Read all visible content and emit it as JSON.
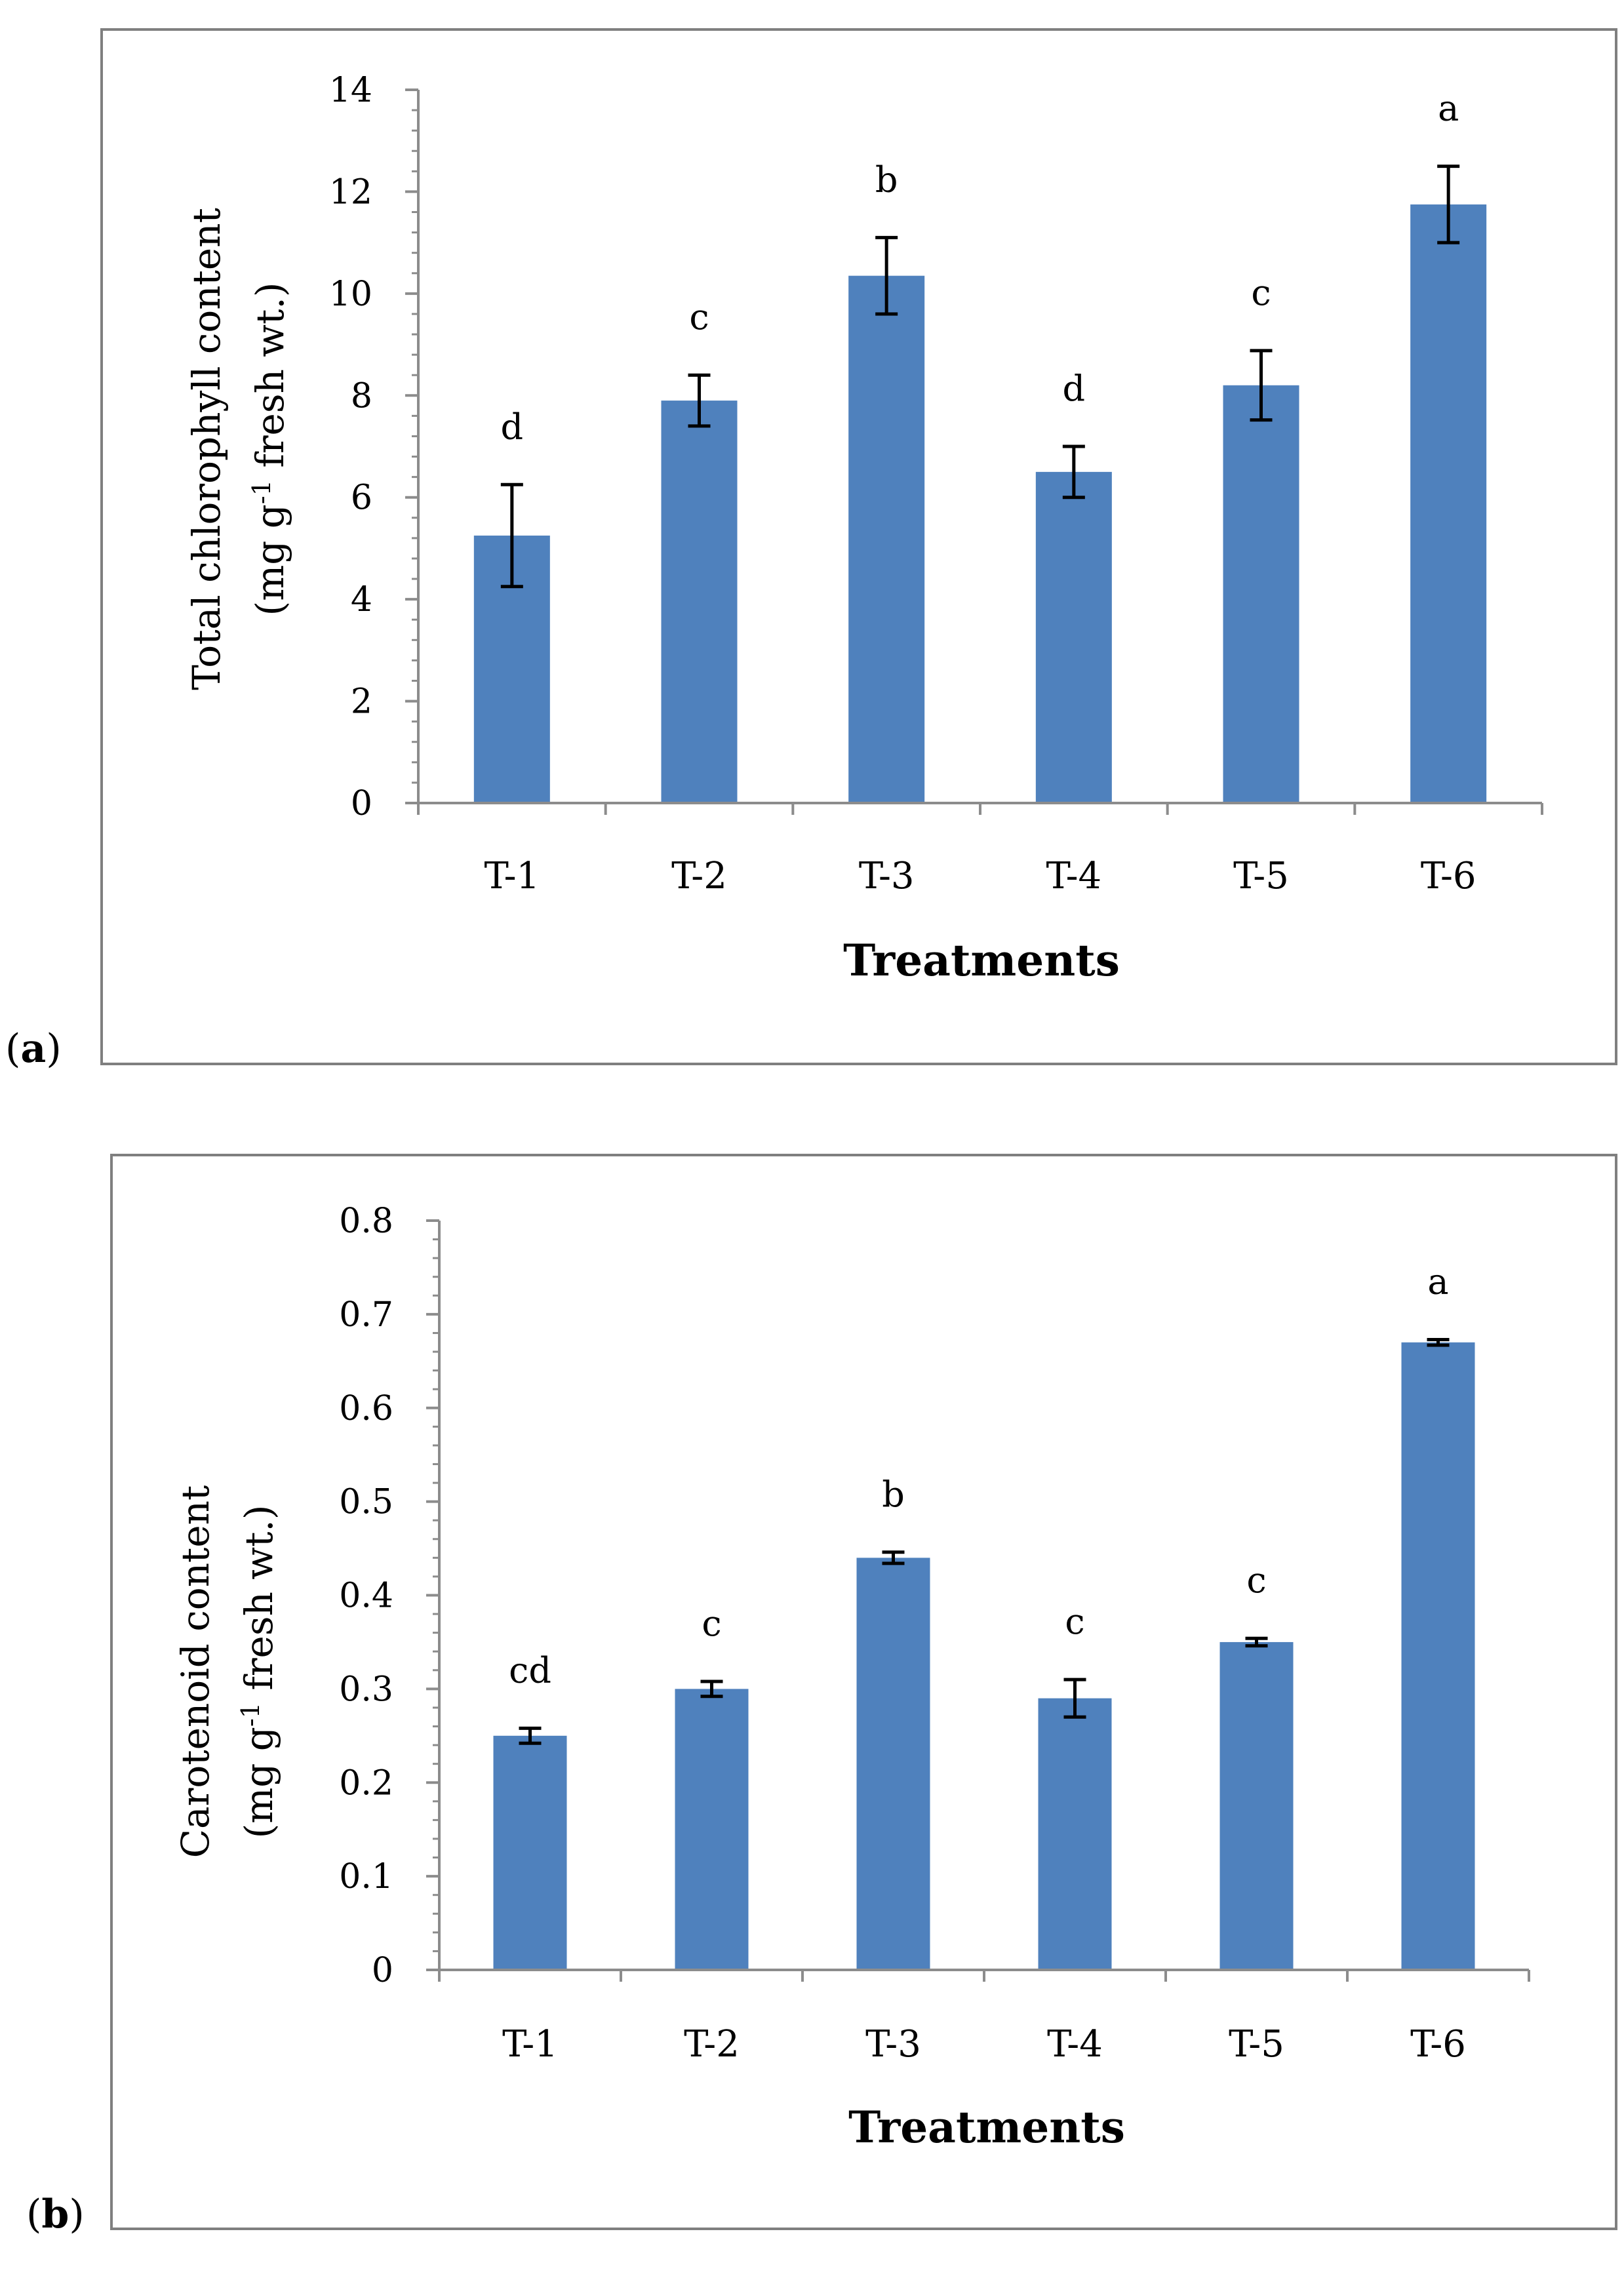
{
  "chart_data": [
    {
      "type": "bar",
      "panel_label": "a",
      "categories": [
        "T-1",
        "T-2",
        "T-3",
        "T-4",
        "T-5",
        "T-6"
      ],
      "values": [
        5.25,
        7.9,
        10.35,
        6.5,
        8.2,
        11.75
      ],
      "errors": [
        1.0,
        0.5,
        0.75,
        0.5,
        0.68,
        0.75
      ],
      "significance": [
        "d",
        "c",
        "b",
        "d",
        "c",
        "a"
      ],
      "xlabel": "Treatments",
      "ylabel_line1": "Total chlorophyll content",
      "ylabel_line2_prefix": "(mg g",
      "ylabel_line2_sup": "-1",
      "ylabel_line2_suffix": " fresh wt.)",
      "ylim": [
        0,
        14
      ],
      "yticks": [
        0,
        2,
        4,
        6,
        8,
        10,
        12,
        14
      ],
      "ytick_labels": [
        "0",
        "2",
        "4",
        "6",
        "8",
        "10",
        "12",
        "14"
      ],
      "bar_color": "#4F81BD"
    },
    {
      "type": "bar",
      "panel_label": "b",
      "categories": [
        "T-1",
        "T-2",
        "T-3",
        "T-4",
        "T-5",
        "T-6"
      ],
      "values": [
        0.25,
        0.3,
        0.44,
        0.29,
        0.35,
        0.67
      ],
      "errors": [
        0.008,
        0.008,
        0.006,
        0.02,
        0.004,
        0.003
      ],
      "significance": [
        "cd",
        "c",
        "b",
        "c",
        "c",
        "a"
      ],
      "xlabel": "Treatments",
      "ylabel_line1": "Carotenoid content",
      "ylabel_line2_prefix": "(mg g",
      "ylabel_line2_sup": "-1",
      "ylabel_line2_suffix": " fresh wt.)",
      "ylim": [
        0,
        0.8
      ],
      "yticks": [
        0,
        0.1,
        0.2,
        0.3,
        0.4,
        0.5,
        0.6,
        0.7,
        0.8
      ],
      "ytick_labels": [
        "0",
        "0.1",
        "0.2",
        "0.3",
        "0.4",
        "0.5",
        "0.6",
        "0.7",
        "0.8"
      ],
      "bar_color": "#4F81BD"
    }
  ]
}
